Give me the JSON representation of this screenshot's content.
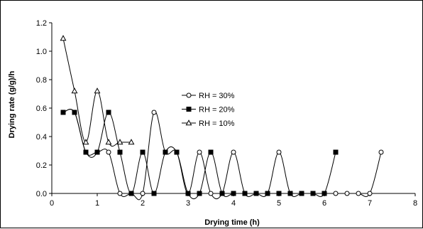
{
  "chart_data": {
    "type": "line",
    "title": "",
    "xlabel": "Drying time (h)",
    "ylabel": "Drying rate (g/g)/h",
    "xlim": [
      0,
      8
    ],
    "ylim": [
      0,
      1.2
    ],
    "xticks": [
      0,
      1,
      2,
      3,
      4,
      5,
      6,
      7,
      8
    ],
    "yticks": [
      0.0,
      0.2,
      0.4,
      0.6,
      0.8,
      1.0,
      1.2
    ],
    "xtick_labels": [
      "0",
      "1",
      "2",
      "3",
      "4",
      "5",
      "6",
      "7",
      "8"
    ],
    "ytick_labels": [
      "0.0",
      "0.2",
      "0.4",
      "0.6",
      "0.8",
      "1.0",
      "1.2"
    ],
    "grid": false,
    "legend_position": "center",
    "smooth_lines": true,
    "series": [
      {
        "name": "RH = 30%",
        "marker": "circle-open",
        "color": "#000000",
        "x": [
          0.25,
          0.5,
          0.75,
          1.0,
          1.25,
          1.5,
          1.75,
          2.0,
          2.25,
          2.5,
          2.75,
          3.0,
          3.25,
          3.5,
          3.75,
          4.0,
          4.25,
          4.5,
          4.75,
          5.0,
          5.25,
          5.5,
          5.75,
          6.0,
          6.25,
          6.5,
          6.75,
          7.0,
          7.25
        ],
        "y": [
          0.57,
          0.57,
          0.29,
          0.29,
          0.29,
          0.0,
          0.0,
          0.0,
          0.57,
          0.29,
          0.29,
          0.0,
          0.29,
          0.0,
          0.0,
          0.29,
          0.0,
          0.0,
          0.0,
          0.29,
          0.0,
          0.0,
          0.0,
          0.0,
          0.0,
          0.0,
          0.0,
          0.0,
          0.29
        ]
      },
      {
        "name": "RH = 20%",
        "marker": "square-filled",
        "color": "#000000",
        "x": [
          0.25,
          0.5,
          0.75,
          1.0,
          1.25,
          1.5,
          1.75,
          2.0,
          2.25,
          2.5,
          2.75,
          3.0,
          3.25,
          3.5,
          3.75,
          4.0,
          4.25,
          4.5,
          4.75,
          5.0,
          5.25,
          5.5,
          5.75,
          6.0,
          6.25
        ],
        "y": [
          0.57,
          0.57,
          0.29,
          0.29,
          0.57,
          0.29,
          0.0,
          0.29,
          0.0,
          0.29,
          0.29,
          0.0,
          0.0,
          0.29,
          0.0,
          0.0,
          0.0,
          0.0,
          0.0,
          0.0,
          0.0,
          0.0,
          0.0,
          0.0,
          0.29
        ]
      },
      {
        "name": "RH = 10%",
        "marker": "triangle-open",
        "color": "#000000",
        "x": [
          0.25,
          0.5,
          0.75,
          1.0,
          1.25,
          1.5,
          1.75
        ],
        "y": [
          1.09,
          0.72,
          0.36,
          0.72,
          0.36,
          0.36,
          0.36
        ]
      }
    ]
  }
}
